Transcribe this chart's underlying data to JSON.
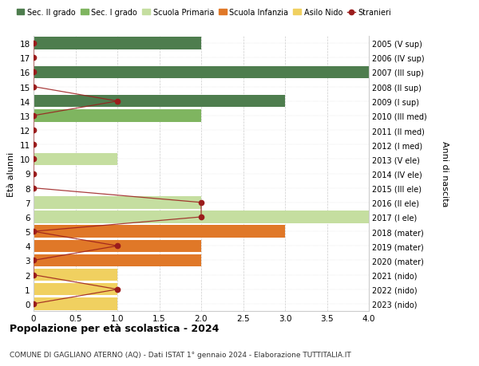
{
  "ages": [
    18,
    17,
    16,
    15,
    14,
    13,
    12,
    11,
    10,
    9,
    8,
    7,
    6,
    5,
    4,
    3,
    2,
    1,
    0
  ],
  "right_labels": [
    "2005 (V sup)",
    "2006 (IV sup)",
    "2007 (III sup)",
    "2008 (II sup)",
    "2009 (I sup)",
    "2010 (III med)",
    "2011 (II med)",
    "2012 (I med)",
    "2013 (V ele)",
    "2014 (IV ele)",
    "2015 (III ele)",
    "2016 (II ele)",
    "2017 (I ele)",
    "2018 (mater)",
    "2019 (mater)",
    "2020 (mater)",
    "2021 (nido)",
    "2022 (nido)",
    "2023 (nido)"
  ],
  "bar_values": [
    2,
    0,
    4,
    0,
    3,
    2,
    0,
    0,
    1,
    0,
    0,
    2,
    4,
    3,
    2,
    2,
    1,
    1,
    1
  ],
  "bar_colors": [
    "#4e7d4e",
    "#4e7d4e",
    "#4e7d4e",
    "#4e7d4e",
    "#4e7d4e",
    "#7fb560",
    "#7fb560",
    "#7fb560",
    "#c5dea0",
    "#c5dea0",
    "#c5dea0",
    "#c5dea0",
    "#c5dea0",
    "#e07828",
    "#e07828",
    "#e07828",
    "#f0d060",
    "#f0d060",
    "#f0d060"
  ],
  "stranieri_values": [
    0,
    0,
    0,
    0,
    1,
    0,
    0,
    0,
    0,
    0,
    0,
    2,
    2,
    0,
    1,
    0,
    0,
    1,
    0
  ],
  "legend_items": [
    {
      "label": "Sec. II grado",
      "color": "#4e7d4e",
      "type": "patch"
    },
    {
      "label": "Sec. I grado",
      "color": "#7fb560",
      "type": "patch"
    },
    {
      "label": "Scuola Primaria",
      "color": "#c5dea0",
      "type": "patch"
    },
    {
      "label": "Scuola Infanzia",
      "color": "#e07828",
      "type": "patch"
    },
    {
      "label": "Asilo Nido",
      "color": "#f0d060",
      "type": "patch"
    },
    {
      "label": "Stranieri",
      "color": "#9b1c1c",
      "type": "line"
    }
  ],
  "stranieri_color": "#9b1c1c",
  "ylabel": "Età alunni",
  "ylabel_right": "Anni di nascita",
  "xlim": [
    0,
    4.0
  ],
  "xticks": [
    0,
    0.5,
    1.0,
    1.5,
    2.0,
    2.5,
    3.0,
    3.5,
    4.0
  ],
  "title": "Popolazione per età scolastica - 2024",
  "subtitle": "COMUNE DI GAGLIANO ATERNO (AQ) - Dati ISTAT 1° gennaio 2024 - Elaborazione TUTTITALIA.IT",
  "background_color": "#ffffff",
  "grid_color": "#cccccc"
}
